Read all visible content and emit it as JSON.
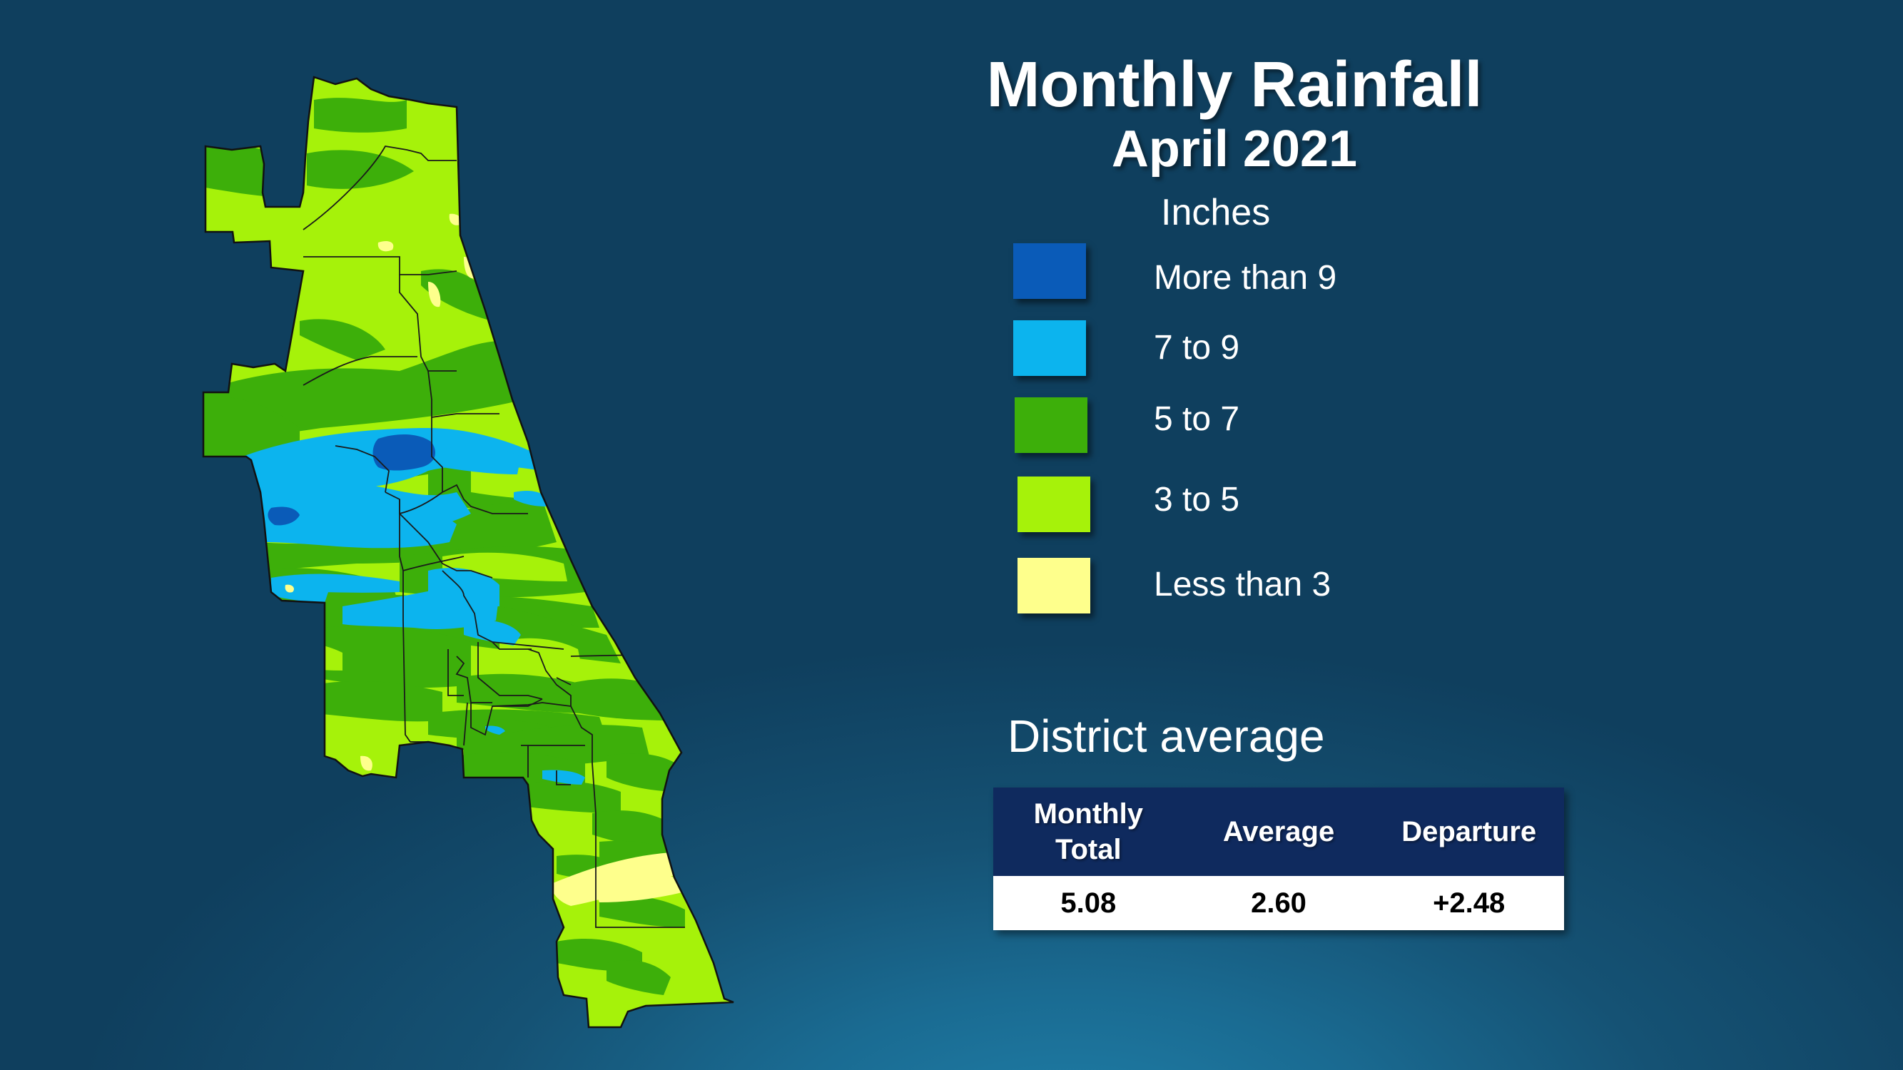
{
  "title": "Monthly Rainfall",
  "subtitle": "April 2021",
  "legend": {
    "heading": "Inches",
    "items": [
      {
        "label": "More than 9",
        "color": "#0a5bb8"
      },
      {
        "label": "7 to 9",
        "color": "#0cb4ee"
      },
      {
        "label": "5 to 7",
        "color": "#3daf0a"
      },
      {
        "label": "3 to 5",
        "color": "#a6f20a"
      },
      {
        "label": "Less than 3",
        "color": "#feff8c"
      }
    ]
  },
  "district_average": {
    "heading": "District average",
    "header_line1": "Monthly",
    "header_line2": "Total",
    "header_average": "Average",
    "header_departure": "Departure",
    "monthly_total": "5.08",
    "average": "2.60",
    "departure": "+2.48"
  }
}
